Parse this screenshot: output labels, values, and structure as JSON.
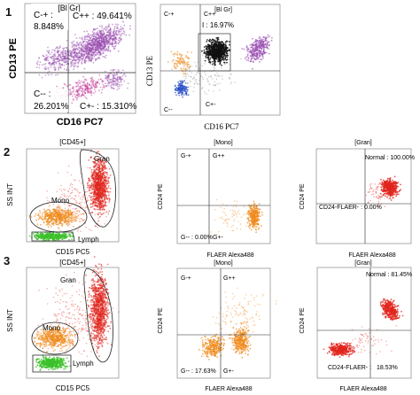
{
  "row_labels": [
    "1",
    "2",
    "3"
  ],
  "row1": {
    "left": {
      "title": "[Bl Gr]",
      "q_ul": "C-+ :",
      "q_ul_val": "8.848%",
      "q_ur": "C++ : 49.641%",
      "q_ll": "C-- :",
      "q_ll_val": "26.201%",
      "q_lr": "C+- : 15.310%",
      "xlabel": "CD16 PC7",
      "ylabel": "CD13 PE"
    },
    "right": {
      "title": "[Bl Gr]",
      "q_ul": "C-+",
      "q_ur": "C++",
      "gate": "I : 16.97%",
      "q_ll": "C--",
      "q_lr": "C+-",
      "xlabel": "CD16 PC7",
      "ylabel": "CD13 PE"
    }
  },
  "row2": {
    "left": {
      "title": "[CD45+]",
      "gran": "Gran",
      "mono": "Mono",
      "lymph": "Lymph",
      "xlabel": "CD15 PC5",
      "ylabel": "SS INT"
    },
    "mid": {
      "title": "[Mono]",
      "q_ul": "G-+",
      "q_ur": "G++",
      "q_ll": "G-- : 0.00%",
      "q_lr": "G+-",
      "xlabel": "FLAER Alexa488",
      "ylabel": "CD24 PE"
    },
    "right": {
      "title": "[Gran]",
      "normal": "Normal : 100.00%",
      "neg": "CD24-FLAER- : 0.00%",
      "xlabel": "FLAER Alexa488",
      "ylabel": "CD24 PE"
    }
  },
  "row3": {
    "left": {
      "title": "[CD45+]",
      "gran": "Gran",
      "mono": "Mono",
      "lymph": "Lymph",
      "xlabel": "CD15 PC5",
      "ylabel": "SS INT"
    },
    "mid": {
      "title": "[Mono]",
      "q_ul": "G-+",
      "q_ur": "G++",
      "q_ll": "G-- : 17.63%",
      "q_lr": "G+-",
      "xlabel": "FLAER Alexa488",
      "ylabel": "CD24 PE"
    },
    "right": {
      "title": "[Gran]",
      "normal": "Normal : 81.45%",
      "neg": "CD24-FLAER- :",
      "neg_val": "18.53%",
      "xlabel": "FLAER Alexa488",
      "ylabel": "CD24 PE"
    }
  },
  "colors": {
    "purple": "#9a4fb0",
    "magenta": "#c43a9a",
    "black": "#111111",
    "blue": "#2a4fc8",
    "orange": "#f08a1c",
    "red": "#e0241c",
    "green": "#3cc02a",
    "gray": "#9aa0a0"
  }
}
